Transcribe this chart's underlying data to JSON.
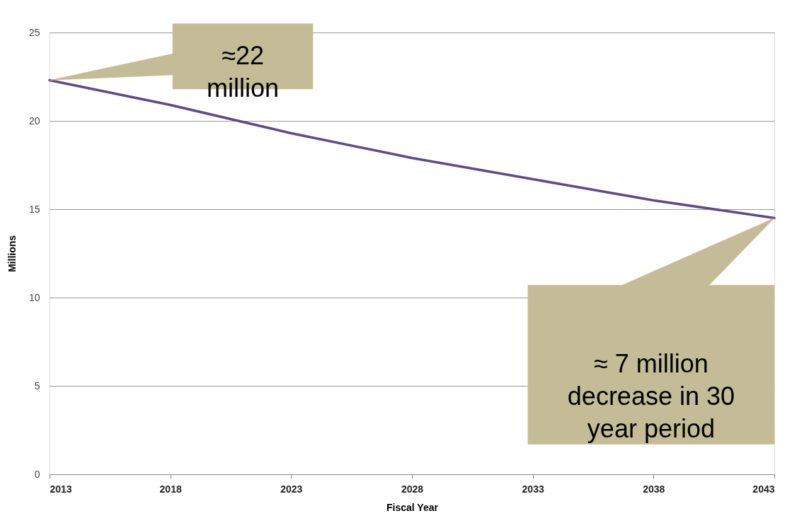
{
  "chart_data": {
    "type": "line",
    "xlabel": "Fiscal Year",
    "ylabel": "Millions",
    "x": [
      2013,
      2018,
      2023,
      2028,
      2033,
      2038,
      2043
    ],
    "series": [
      {
        "color": "#5e4c88",
        "values": [
          22.3,
          20.9,
          19.3,
          17.9,
          16.7,
          15.5,
          14.5
        ]
      }
    ],
    "xlim": [
      2013,
      2043
    ],
    "xticks": [
      2013,
      2018,
      2023,
      2028,
      2033,
      2038,
      2043
    ],
    "ylim": [
      0,
      25
    ],
    "yticks": [
      0,
      5,
      10,
      15,
      20,
      25
    ],
    "grid": "y",
    "marker": "none",
    "line_style": "solid",
    "annotations": [
      "≈22\nmillion",
      "≈ 7 million\ndecrease in 30\nyear period"
    ]
  }
}
